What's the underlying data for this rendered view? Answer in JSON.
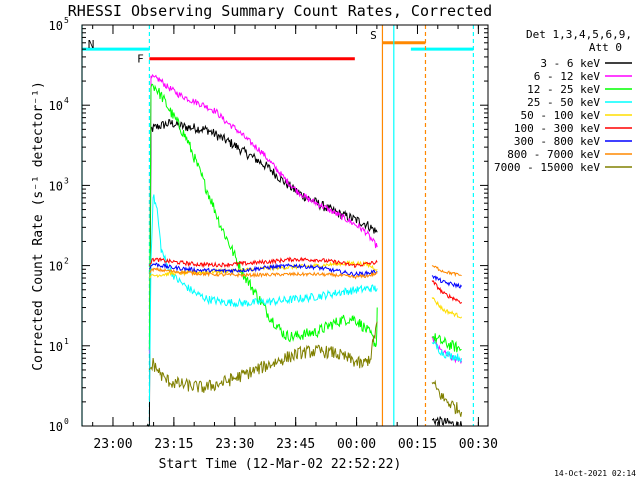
{
  "chart_data": {
    "type": "line",
    "title": "RHESSI Observing Summary Count Rates, Corrected",
    "xlabel": "Start Time (12-Mar-02 22:52:22)",
    "ylabel": "Corrected Count Rate (s⁻¹ detector⁻¹)",
    "footer": "14-Oct-2021 02:14",
    "x_unit": "minutes after 22:52:22",
    "xlim": [
      0,
      100
    ],
    "ylim": [
      1,
      100000
    ],
    "yscale": "log",
    "x_ticks": [
      {
        "x": 7.63,
        "label": "23:00"
      },
      {
        "x": 22.63,
        "label": "23:15"
      },
      {
        "x": 37.63,
        "label": "23:30"
      },
      {
        "x": 52.63,
        "label": "23:45"
      },
      {
        "x": 67.63,
        "label": "00:00"
      },
      {
        "x": 82.63,
        "label": "00:15"
      },
      {
        "x": 97.63,
        "label": "00:30"
      }
    ],
    "y_ticks": [
      {
        "v": 1,
        "base": "10",
        "exp": "0"
      },
      {
        "v": 10,
        "base": "10",
        "exp": "1"
      },
      {
        "v": 100,
        "base": "10",
        "exp": "2"
      },
      {
        "v": 1000,
        "base": "10",
        "exp": "3"
      },
      {
        "v": 10000,
        "base": "10",
        "exp": "4"
      },
      {
        "v": 100000,
        "base": "10",
        "exp": "5"
      }
    ],
    "legend": {
      "header_line1": "Det 1,3,4,5,6,9,",
      "header_line2": "Att 0",
      "placement": "right"
    },
    "series": [
      {
        "name": "3 - 6 keV",
        "color": "#000000",
        "noise": 0.06,
        "segments": [
          [
            [
              15.8,
              1.0
            ],
            [
              16.6,
              1.0
            ],
            [
              17.0,
              5000
            ],
            [
              19,
              5500
            ],
            [
              22,
              6000
            ],
            [
              25,
              5400
            ],
            [
              28,
              5200
            ],
            [
              31,
              4900
            ],
            [
              34,
              4000
            ],
            [
              37,
              3300
            ],
            [
              40,
              2600
            ],
            [
              43,
              2100
            ],
            [
              46,
              1650
            ],
            [
              49,
              1200
            ],
            [
              52,
              900
            ],
            [
              55,
              720
            ],
            [
              58,
              600
            ],
            [
              61,
              500
            ],
            [
              64,
              430
            ],
            [
              67,
              380
            ],
            [
              70,
              330
            ],
            [
              72.7,
              260
            ]
          ],
          [
            [
              86.2,
              1.2
            ],
            [
              90,
              1.1
            ],
            [
              93.5,
              1.0
            ]
          ]
        ]
      },
      {
        "name": "6 - 12 keV",
        "color": "#ff00ff",
        "noise": 0.04,
        "segments": [
          [
            [
              16.6,
              8
            ],
            [
              17.0,
              22000
            ],
            [
              19,
              21000
            ],
            [
              21,
              17000
            ],
            [
              24,
              13500
            ],
            [
              27,
              11500
            ],
            [
              30,
              10000
            ],
            [
              33,
              8400
            ],
            [
              35,
              6500
            ],
            [
              38,
              5000
            ],
            [
              41,
              3600
            ],
            [
              44,
              2700
            ],
            [
              47,
              1800
            ],
            [
              50,
              1200
            ],
            [
              53,
              850
            ],
            [
              56,
              660
            ],
            [
              59,
              560
            ],
            [
              62,
              460
            ],
            [
              65,
              380
            ],
            [
              68,
              310
            ],
            [
              70,
              260
            ],
            [
              72.7,
              170
            ]
          ],
          [
            [
              86.2,
              13
            ],
            [
              88,
              9
            ],
            [
              91,
              7
            ],
            [
              93.5,
              6.5
            ]
          ]
        ]
      },
      {
        "name": "12 - 25 keV",
        "color": "#00ff00",
        "noise": 0.07,
        "segments": [
          [
            [
              16.6,
              9
            ],
            [
              17.0,
              18000
            ],
            [
              18,
              17000
            ],
            [
              20,
              12000
            ],
            [
              22,
              8000
            ],
            [
              24,
              5500
            ],
            [
              26,
              3600
            ],
            [
              28,
              2000
            ],
            [
              30,
              1100
            ],
            [
              32,
              620
            ],
            [
              34,
              330
            ],
            [
              36,
              200
            ],
            [
              38,
              120
            ],
            [
              40,
              75
            ],
            [
              42,
              52
            ],
            [
              44,
              36
            ],
            [
              46,
              24
            ],
            [
              48,
              18
            ],
            [
              50,
              13.5
            ],
            [
              52,
              13
            ],
            [
              55,
              14
            ],
            [
              58,
              15
            ],
            [
              61,
              18
            ],
            [
              64,
              21
            ],
            [
              67,
              22
            ],
            [
              69,
              18
            ],
            [
              71,
              14
            ],
            [
              72.5,
              10
            ],
            [
              72.7,
              30
            ]
          ],
          [
            [
              86.2,
              13
            ],
            [
              89,
              11
            ],
            [
              93.5,
              9
            ]
          ]
        ]
      },
      {
        "name": "25 - 50 keV",
        "color": "#00ffff",
        "noise": 0.05,
        "segments": [
          [
            [
              16.6,
              2
            ],
            [
              17.0,
              120
            ],
            [
              17.5,
              750
            ],
            [
              18.5,
              500
            ],
            [
              19.5,
              160
            ],
            [
              21,
              100
            ],
            [
              23,
              70
            ],
            [
              25,
              58
            ],
            [
              28,
              45
            ],
            [
              31,
              38
            ],
            [
              35,
              35
            ],
            [
              40,
              34
            ],
            [
              44,
              35
            ],
            [
              48,
              36
            ],
            [
              52,
              38
            ],
            [
              56,
              40
            ],
            [
              60,
              43
            ],
            [
              64,
              47
            ],
            [
              68,
              50
            ],
            [
              71,
              52
            ],
            [
              72.7,
              52
            ]
          ],
          [
            [
              86.2,
              11
            ],
            [
              89,
              8
            ],
            [
              93.5,
              7
            ]
          ]
        ]
      },
      {
        "name": "50 - 100 keV",
        "color": "#ffdd00",
        "noise": 0.025,
        "segments": [
          [
            [
              16.6,
              70
            ],
            [
              17.5,
              75
            ],
            [
              22,
              80
            ],
            [
              28,
              82
            ],
            [
              34,
              85
            ],
            [
              40,
              88
            ],
            [
              46,
              93
            ],
            [
              52,
              96
            ],
            [
              58,
              100
            ],
            [
              63,
              105
            ],
            [
              67,
              108
            ],
            [
              70,
              104
            ],
            [
              72.7,
              90
            ]
          ],
          [
            [
              86.2,
              40
            ],
            [
              89,
              28
            ],
            [
              93.5,
              23
            ]
          ]
        ]
      },
      {
        "name": "100 - 300 keV",
        "color": "#ff0000",
        "noise": 0.025,
        "segments": [
          [
            [
              16.6,
              100
            ],
            [
              17.5,
              120
            ],
            [
              22,
              112
            ],
            [
              28,
              104
            ],
            [
              34,
              102
            ],
            [
              40,
              106
            ],
            [
              46,
              112
            ],
            [
              52,
              120
            ],
            [
              58,
              118
            ],
            [
              63,
              110
            ],
            [
              67,
              100
            ],
            [
              70,
              105
            ],
            [
              72.7,
              110
            ]
          ],
          [
            [
              86.2,
              65
            ],
            [
              89,
              45
            ],
            [
              93.5,
              35
            ]
          ]
        ]
      },
      {
        "name": "300 - 800 keV",
        "color": "#0000ff",
        "noise": 0.025,
        "segments": [
          [
            [
              16.6,
              90
            ],
            [
              17.5,
              105
            ],
            [
              22,
              95
            ],
            [
              28,
              88
            ],
            [
              34,
              86
            ],
            [
              40,
              88
            ],
            [
              46,
              95
            ],
            [
              52,
              100
            ],
            [
              58,
              95
            ],
            [
              63,
              85
            ],
            [
              67,
              78
            ],
            [
              70,
              80
            ],
            [
              72.7,
              85
            ]
          ],
          [
            [
              86.2,
              75
            ],
            [
              89,
              62
            ],
            [
              93.5,
              55
            ]
          ]
        ]
      },
      {
        "name": "800 - 7000 keV",
        "color": "#ff8800",
        "noise": 0.02,
        "segments": [
          [
            [
              16.6,
              80
            ],
            [
              17.5,
              90
            ],
            [
              22,
              85
            ],
            [
              28,
              80
            ],
            [
              34,
              77
            ],
            [
              40,
              76
            ],
            [
              46,
              77
            ],
            [
              52,
              78
            ],
            [
              58,
              78
            ],
            [
              63,
              76
            ],
            [
              67,
              72
            ],
            [
              70,
              74
            ],
            [
              72.7,
              80
            ]
          ],
          [
            [
              86.2,
              100
            ],
            [
              89,
              85
            ],
            [
              93.5,
              75
            ]
          ]
        ]
      },
      {
        "name": "7000 - 15000 keV",
        "color": "#808000",
        "noise": 0.08,
        "segments": [
          [
            [
              16.6,
              5
            ],
            [
              17.5,
              6
            ],
            [
              20,
              4
            ],
            [
              22,
              3.5
            ],
            [
              26,
              3.2
            ],
            [
              30,
              3.0
            ],
            [
              34,
              3.4
            ],
            [
              38,
              4.0
            ],
            [
              42,
              4.8
            ],
            [
              46,
              5.8
            ],
            [
              50,
              7.0
            ],
            [
              54,
              8.2
            ],
            [
              58,
              8.6
            ],
            [
              62,
              8.2
            ],
            [
              66,
              6.8
            ],
            [
              69,
              5.8
            ],
            [
              71,
              7
            ],
            [
              72.7,
              20
            ]
          ],
          [
            [
              86.2,
              3.5
            ],
            [
              89,
              2.2
            ],
            [
              93.5,
              1.5
            ]
          ]
        ]
      }
    ],
    "bars": [
      {
        "label": "N",
        "color": "#00ffff",
        "x0": 0,
        "x1": 16.6,
        "x2": 81.0,
        "x3": 96.4,
        "level": 50000
      },
      {
        "label": "F",
        "color": "#ff0000",
        "x0": 16.6,
        "x1": 67.2,
        "level": 38000
      },
      {
        "label": "S",
        "color": "#ff8800",
        "x0": 74.0,
        "x1": 84.6,
        "level": 60000
      }
    ],
    "vlines": [
      {
        "x": 0.0,
        "color": "#00ffff",
        "dash": false
      },
      {
        "x": 16.6,
        "color": "#00ffff",
        "dash": true
      },
      {
        "x": 74.0,
        "color": "#ff8800",
        "dash": false
      },
      {
        "x": 76.8,
        "color": "#00ffff",
        "dash": false
      },
      {
        "x": 84.6,
        "color": "#ff8800",
        "dash": true
      },
      {
        "x": 96.4,
        "color": "#00ffff",
        "dash": true
      }
    ]
  }
}
